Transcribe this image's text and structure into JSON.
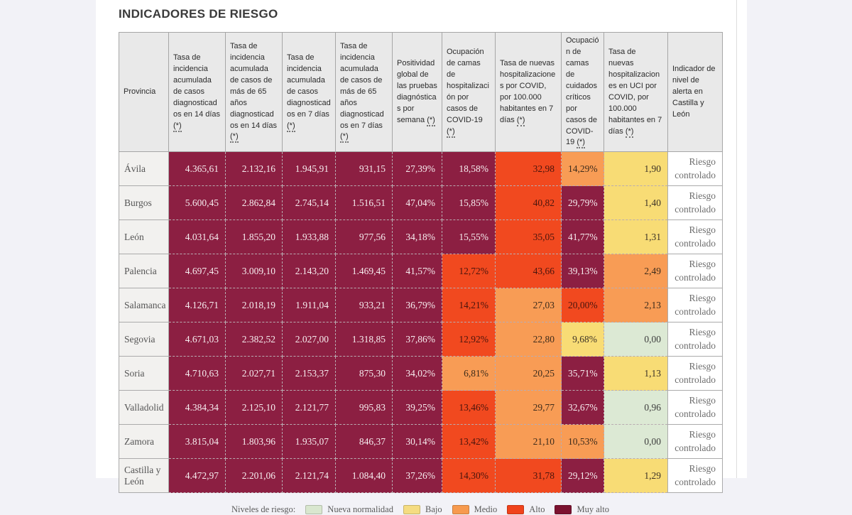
{
  "page": {
    "title": "INDICADORES DE RIESGO"
  },
  "table": {
    "columns": [
      {
        "label": "Provincia",
        "note": null
      },
      {
        "label": "Tasa de incidencia acumulada de casos diagnosticados en 14 días",
        "note": "(*)"
      },
      {
        "label": "Tasa de incidencia acumulada de casos de más de 65 años diagnosticados en 14 días",
        "note": "(*)"
      },
      {
        "label": "Tasa de incidencia acumulada de casos diagnosticados en 7 días",
        "note": "(*)"
      },
      {
        "label": "Tasa de incidencia acumulada de casos de más de 65 años diagnosticados en 7 días",
        "note": "(*)"
      },
      {
        "label": "Positividad global de las pruebas diagnósticas por semana",
        "note": "(*)"
      },
      {
        "label": "Ocupación de camas de hospitalización por casos de COVID-19",
        "note": "(*)"
      },
      {
        "label": "Tasa de nuevas hospitalizaciones por COVID, por 100.000 habitantes en 7 días",
        "note": "(*)"
      },
      {
        "label": "Ocupación de camas de cuidados críticos por casos de COVID-19",
        "note": "(*)"
      },
      {
        "label": "Tasa de nuevas hospitalizaciones en UCI por COVID, por 100.000 habitantes en 7 días",
        "note": "(*)"
      },
      {
        "label": "Indicador de nivel de alerta en Castilla y León",
        "note": null
      }
    ],
    "rows": [
      {
        "province": "Ávila",
        "cells": [
          {
            "value": "4.365,61",
            "level": "muy_alto"
          },
          {
            "value": "2.132,16",
            "level": "muy_alto"
          },
          {
            "value": "1.945,91",
            "level": "muy_alto"
          },
          {
            "value": "931,15",
            "level": "muy_alto"
          },
          {
            "value": "27,39%",
            "level": "muy_alto"
          },
          {
            "value": "18,58%",
            "level": "muy_alto"
          },
          {
            "value": "32,98",
            "level": "alto"
          },
          {
            "value": "14,29%",
            "level": "medio"
          },
          {
            "value": "1,90",
            "level": "bajo"
          }
        ],
        "alert": "Riesgo controlado"
      },
      {
        "province": "Burgos",
        "cells": [
          {
            "value": "5.600,45",
            "level": "muy_alto"
          },
          {
            "value": "2.862,84",
            "level": "muy_alto"
          },
          {
            "value": "2.745,14",
            "level": "muy_alto"
          },
          {
            "value": "1.516,51",
            "level": "muy_alto"
          },
          {
            "value": "47,04%",
            "level": "muy_alto"
          },
          {
            "value": "15,85%",
            "level": "muy_alto"
          },
          {
            "value": "40,82",
            "level": "alto"
          },
          {
            "value": "29,79%",
            "level": "muy_alto"
          },
          {
            "value": "1,40",
            "level": "bajo"
          }
        ],
        "alert": "Riesgo controlado"
      },
      {
        "province": "León",
        "cells": [
          {
            "value": "4.031,64",
            "level": "muy_alto"
          },
          {
            "value": "1.855,20",
            "level": "muy_alto"
          },
          {
            "value": "1.933,88",
            "level": "muy_alto"
          },
          {
            "value": "977,56",
            "level": "muy_alto"
          },
          {
            "value": "34,18%",
            "level": "muy_alto"
          },
          {
            "value": "15,55%",
            "level": "muy_alto"
          },
          {
            "value": "35,05",
            "level": "alto"
          },
          {
            "value": "41,77%",
            "level": "muy_alto"
          },
          {
            "value": "1,31",
            "level": "bajo"
          }
        ],
        "alert": "Riesgo controlado"
      },
      {
        "province": "Palencia",
        "cells": [
          {
            "value": "4.697,45",
            "level": "muy_alto"
          },
          {
            "value": "3.009,10",
            "level": "muy_alto"
          },
          {
            "value": "2.143,20",
            "level": "muy_alto"
          },
          {
            "value": "1.469,45",
            "level": "muy_alto"
          },
          {
            "value": "41,57%",
            "level": "muy_alto"
          },
          {
            "value": "12,72%",
            "level": "alto"
          },
          {
            "value": "43,66",
            "level": "alto"
          },
          {
            "value": "39,13%",
            "level": "muy_alto"
          },
          {
            "value": "2,49",
            "level": "medio"
          }
        ],
        "alert": "Riesgo controlado"
      },
      {
        "province": "Salamanca",
        "cells": [
          {
            "value": "4.126,71",
            "level": "muy_alto"
          },
          {
            "value": "2.018,19",
            "level": "muy_alto"
          },
          {
            "value": "1.911,04",
            "level": "muy_alto"
          },
          {
            "value": "933,21",
            "level": "muy_alto"
          },
          {
            "value": "36,79%",
            "level": "muy_alto"
          },
          {
            "value": "14,21%",
            "level": "alto"
          },
          {
            "value": "27,03",
            "level": "medio"
          },
          {
            "value": "20,00%",
            "level": "alto"
          },
          {
            "value": "2,13",
            "level": "medio"
          }
        ],
        "alert": "Riesgo controlado"
      },
      {
        "province": "Segovia",
        "cells": [
          {
            "value": "4.671,03",
            "level": "muy_alto"
          },
          {
            "value": "2.382,52",
            "level": "muy_alto"
          },
          {
            "value": "2.027,00",
            "level": "muy_alto"
          },
          {
            "value": "1.318,85",
            "level": "muy_alto"
          },
          {
            "value": "37,86%",
            "level": "muy_alto"
          },
          {
            "value": "12,92%",
            "level": "alto"
          },
          {
            "value": "22,80",
            "level": "medio"
          },
          {
            "value": "9,68%",
            "level": "bajo"
          },
          {
            "value": "0,00",
            "level": "nueva_normalidad"
          }
        ],
        "alert": "Riesgo controlado"
      },
      {
        "province": "Soria",
        "cells": [
          {
            "value": "4.710,63",
            "level": "muy_alto"
          },
          {
            "value": "2.027,71",
            "level": "muy_alto"
          },
          {
            "value": "2.153,37",
            "level": "muy_alto"
          },
          {
            "value": "875,30",
            "level": "muy_alto"
          },
          {
            "value": "34,02%",
            "level": "muy_alto"
          },
          {
            "value": "6,81%",
            "level": "medio"
          },
          {
            "value": "20,25",
            "level": "medio"
          },
          {
            "value": "35,71%",
            "level": "muy_alto"
          },
          {
            "value": "1,13",
            "level": "bajo"
          }
        ],
        "alert": "Riesgo controlado"
      },
      {
        "province": "Valladolid",
        "cells": [
          {
            "value": "4.384,34",
            "level": "muy_alto"
          },
          {
            "value": "2.125,10",
            "level": "muy_alto"
          },
          {
            "value": "2.121,77",
            "level": "muy_alto"
          },
          {
            "value": "995,83",
            "level": "muy_alto"
          },
          {
            "value": "39,25%",
            "level": "muy_alto"
          },
          {
            "value": "13,46%",
            "level": "alto"
          },
          {
            "value": "29,77",
            "level": "medio"
          },
          {
            "value": "32,67%",
            "level": "muy_alto"
          },
          {
            "value": "0,96",
            "level": "nueva_normalidad"
          }
        ],
        "alert": "Riesgo controlado"
      },
      {
        "province": "Zamora",
        "cells": [
          {
            "value": "3.815,04",
            "level": "muy_alto"
          },
          {
            "value": "1.803,96",
            "level": "muy_alto"
          },
          {
            "value": "1.935,07",
            "level": "muy_alto"
          },
          {
            "value": "846,37",
            "level": "muy_alto"
          },
          {
            "value": "30,14%",
            "level": "muy_alto"
          },
          {
            "value": "13,42%",
            "level": "alto"
          },
          {
            "value": "21,10",
            "level": "medio"
          },
          {
            "value": "10,53%",
            "level": "medio"
          },
          {
            "value": "0,00",
            "level": "nueva_normalidad"
          }
        ],
        "alert": "Riesgo controlado"
      },
      {
        "province": "Castilla y León",
        "cells": [
          {
            "value": "4.472,97",
            "level": "muy_alto"
          },
          {
            "value": "2.201,06",
            "level": "muy_alto"
          },
          {
            "value": "2.121,74",
            "level": "muy_alto"
          },
          {
            "value": "1.084,40",
            "level": "muy_alto"
          },
          {
            "value": "37,26%",
            "level": "muy_alto"
          },
          {
            "value": "14,30%",
            "level": "alto"
          },
          {
            "value": "31,78",
            "level": "alto"
          },
          {
            "value": "29,12%",
            "level": "muy_alto"
          },
          {
            "value": "1,29",
            "level": "bajo"
          }
        ],
        "alert": "Riesgo controlado"
      }
    ]
  },
  "legend": {
    "label": "Niveles de riesgo:",
    "items": [
      {
        "label": "Nueva normalidad",
        "color": "#d9e7cf"
      },
      {
        "label": "Bajo",
        "color": "#f5dc81"
      },
      {
        "label": "Medio",
        "color": "#f79a4e"
      },
      {
        "label": "Alto",
        "color": "#f0431b"
      },
      {
        "label": "Muy alto",
        "color": "#7b1230"
      }
    ]
  },
  "colors": {
    "nueva_normalidad": "#dce9d4",
    "bajo": "#f8dc75",
    "medio": "#f89c55",
    "alto": "#f1491f",
    "muy_alto": "#8c1f42",
    "page_background": "#f2f2f7",
    "header_cell": "#e9e9e9",
    "province_cell": "#f2f1ef"
  }
}
